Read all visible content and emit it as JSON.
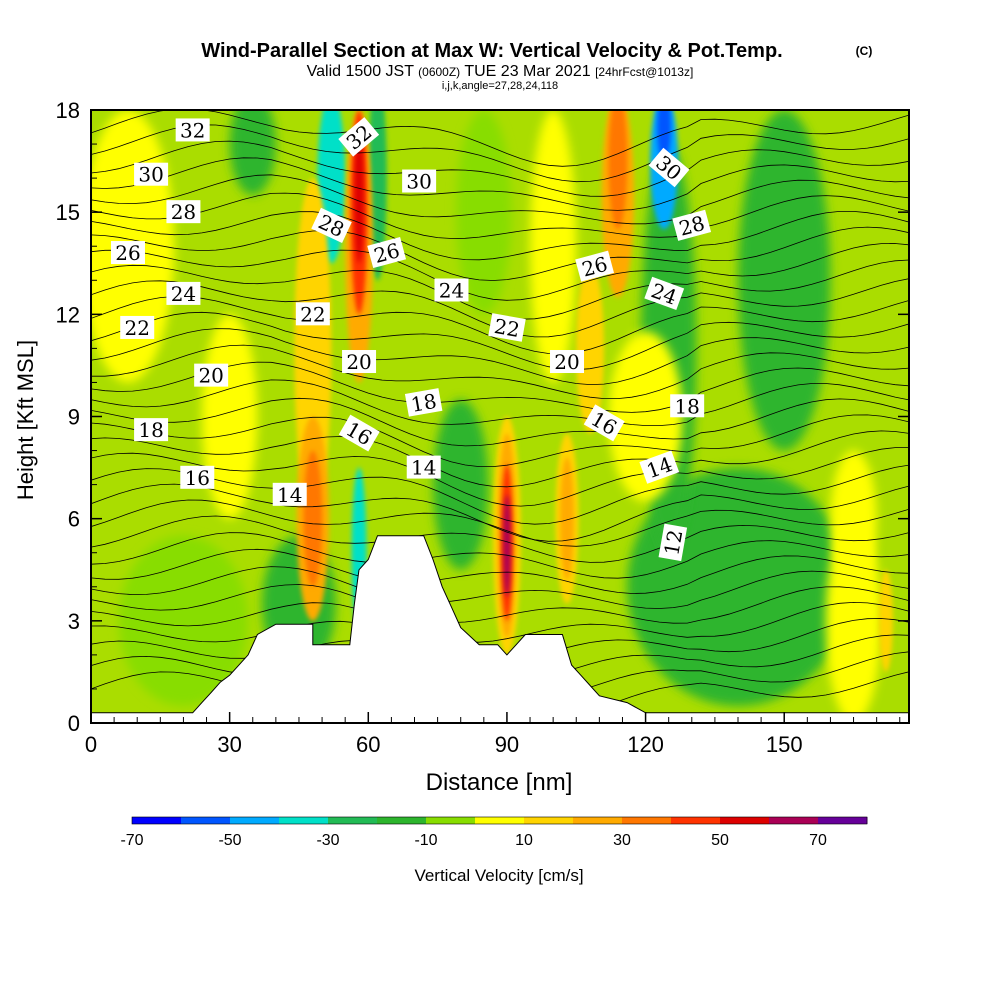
{
  "title": "Wind-Parallel Section at Max W: Vertical Velocity & Pot.Temp.",
  "copyright": "(C)",
  "subtitle_main": "Valid 1500 JST",
  "subtitle_zulu": "(0600Z)",
  "subtitle_date": "TUE 23 Mar 2021",
  "subtitle_fcst": "[24hrFcst@1013z]",
  "ijk_line": "i,j,k,angle=27,28,24,118",
  "chart_data": {
    "type": "heatmap",
    "title": "Wind-Parallel Section at Max W: Vertical Velocity & Pot.Temp.",
    "xlabel": "Distance [nm]",
    "ylabel": "Height [Kft MSL]",
    "xlim": [
      0,
      177
    ],
    "ylim": [
      0,
      18
    ],
    "xticks": [
      0,
      30,
      60,
      90,
      120,
      150
    ],
    "yticks": [
      0,
      3,
      6,
      9,
      12,
      15,
      18
    ],
    "colorbar": {
      "label": "Vertical Velocity [cm/s]",
      "tick_labels": [
        -70,
        -50,
        -30,
        -10,
        10,
        30,
        50,
        70
      ],
      "colors": [
        "#0000ff",
        "#0055ff",
        "#00aaff",
        "#00e0c8",
        "#22bb55",
        "#2db52d",
        "#88dd00",
        "#ffff00",
        "#ffd400",
        "#ffaa00",
        "#ff7700",
        "#ff3300",
        "#dd0000",
        "#aa0055",
        "#660099"
      ]
    },
    "updraft_cores": [
      {
        "x": 58,
        "y": 14,
        "value": 60
      },
      {
        "x": 90,
        "y": 5,
        "value": 65
      },
      {
        "x": 114,
        "y": 16,
        "value": 45
      },
      {
        "x": 48,
        "y": 6,
        "value": 35
      },
      {
        "x": 103,
        "y": 6,
        "value": 35
      }
    ],
    "downdraft_cores": [
      {
        "x": 124,
        "y": 17,
        "value": -55
      },
      {
        "x": 58,
        "y": 5,
        "value": -25
      },
      {
        "x": 52,
        "y": 16,
        "value": -25
      }
    ],
    "terrain": [
      [
        0,
        0.3
      ],
      [
        22,
        0.3
      ],
      [
        24,
        0.6
      ],
      [
        26,
        0.9
      ],
      [
        28,
        1.2
      ],
      [
        30,
        1.4
      ],
      [
        32,
        1.7
      ],
      [
        34,
        2.0
      ],
      [
        36,
        2.6
      ],
      [
        40,
        2.9
      ],
      [
        48,
        2.9
      ],
      [
        48,
        2.3
      ],
      [
        56,
        2.3
      ],
      [
        57,
        3.5
      ],
      [
        58,
        4.5
      ],
      [
        60,
        4.8
      ],
      [
        62,
        5.5
      ],
      [
        72,
        5.5
      ],
      [
        74,
        4.8
      ],
      [
        76,
        4.0
      ],
      [
        78,
        3.4
      ],
      [
        80,
        2.8
      ],
      [
        84,
        2.3
      ],
      [
        88,
        2.3
      ],
      [
        90,
        2.0
      ],
      [
        92,
        2.3
      ],
      [
        94,
        2.6
      ],
      [
        102,
        2.6
      ],
      [
        104,
        1.7
      ],
      [
        106,
        1.4
      ],
      [
        108,
        1.1
      ],
      [
        110,
        0.8
      ],
      [
        116,
        0.6
      ],
      [
        120,
        0.3
      ],
      [
        177,
        0.3
      ]
    ],
    "theta_contours": [
      {
        "value": "12",
        "lx": 126,
        "ly": 5.3,
        "angle": -80
      },
      {
        "value": "14",
        "lx": 43,
        "ly": 6.7,
        "angle": 0
      },
      {
        "value": "14",
        "lx": 72,
        "ly": 7.5,
        "angle": 0
      },
      {
        "value": "14",
        "lx": 123,
        "ly": 7.5,
        "angle": -20
      },
      {
        "value": "16",
        "lx": 23,
        "ly": 7.2,
        "angle": 0
      },
      {
        "value": "16",
        "lx": 58,
        "ly": 8.5,
        "angle": 30
      },
      {
        "value": "16",
        "lx": 111,
        "ly": 8.8,
        "angle": 30
      },
      {
        "value": "18",
        "lx": 13,
        "ly": 8.6,
        "angle": 0
      },
      {
        "value": "18",
        "lx": 72,
        "ly": 9.4,
        "angle": -10
      },
      {
        "value": "18",
        "lx": 129,
        "ly": 9.3,
        "angle": 0
      },
      {
        "value": "20",
        "lx": 26,
        "ly": 10.2,
        "angle": 0
      },
      {
        "value": "20",
        "lx": 58,
        "ly": 10.6,
        "angle": 0
      },
      {
        "value": "20",
        "lx": 103,
        "ly": 10.6,
        "angle": 0
      },
      {
        "value": "22",
        "lx": 10,
        "ly": 11.6,
        "angle": 0
      },
      {
        "value": "22",
        "lx": 48,
        "ly": 12.0,
        "angle": 0
      },
      {
        "value": "22",
        "lx": 90,
        "ly": 11.6,
        "angle": 10
      },
      {
        "value": "24",
        "lx": 20,
        "ly": 12.6,
        "angle": 0
      },
      {
        "value": "24",
        "lx": 78,
        "ly": 12.7,
        "angle": 0
      },
      {
        "value": "24",
        "lx": 124,
        "ly": 12.6,
        "angle": 20
      },
      {
        "value": "26",
        "lx": 8,
        "ly": 13.8,
        "angle": 0
      },
      {
        "value": "26",
        "lx": 64,
        "ly": 13.8,
        "angle": -15
      },
      {
        "value": "26",
        "lx": 109,
        "ly": 13.4,
        "angle": -15
      },
      {
        "value": "28",
        "lx": 20,
        "ly": 15.0,
        "angle": 0
      },
      {
        "value": "28",
        "lx": 52,
        "ly": 14.6,
        "angle": 25
      },
      {
        "value": "28",
        "lx": 130,
        "ly": 14.6,
        "angle": -15
      },
      {
        "value": "30",
        "lx": 13,
        "ly": 16.1,
        "angle": 0
      },
      {
        "value": "30",
        "lx": 71,
        "ly": 15.9,
        "angle": 0
      },
      {
        "value": "30",
        "lx": 125,
        "ly": 16.3,
        "angle": 40
      },
      {
        "value": "32",
        "lx": 22,
        "ly": 17.4,
        "angle": 0
      },
      {
        "value": "32",
        "lx": 58,
        "ly": 17.2,
        "angle": -40
      }
    ]
  }
}
